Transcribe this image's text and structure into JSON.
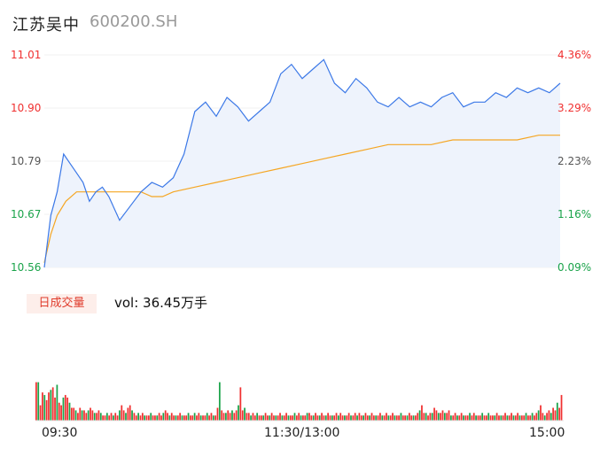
{
  "stock": {
    "name": "江苏吴中",
    "code": "600200.SH"
  },
  "colors": {
    "up": "#f03030",
    "down": "#1aa34a",
    "neutral": "#555555",
    "price_line": "#3b78e7",
    "avg_line": "#f5a623",
    "area": "#eef3fc"
  },
  "price_axis": [
    {
      "price": "11.01",
      "pct": "4.36%",
      "tone": "up"
    },
    {
      "price": "10.90",
      "pct": "3.29%",
      "tone": "up"
    },
    {
      "price": "10.79",
      "pct": "2.23%",
      "tone": "neutral"
    },
    {
      "price": "10.67",
      "pct": "1.16%",
      "tone": "down"
    },
    {
      "price": "10.56",
      "pct": "0.09%",
      "tone": "down"
    }
  ],
  "volume_panel": {
    "badge": "日成交量",
    "label": "vol: 36.45万手"
  },
  "time_axis": [
    "09:30",
    "11:30/13:00",
    "15:00"
  ],
  "chart_data": {
    "type": "line",
    "ylim": [
      10.56,
      11.01
    ],
    "x_range": [
      0,
      240
    ],
    "series": [
      {
        "x": [
          0,
          3,
          6,
          9,
          12,
          15,
          18,
          21,
          24,
          27,
          30,
          35,
          40,
          45,
          50,
          55,
          60,
          65,
          70,
          75,
          80,
          85,
          90,
          95,
          100,
          105,
          110,
          115,
          120,
          125,
          130,
          135,
          140,
          145,
          150,
          155,
          160,
          165,
          170,
          175,
          180,
          185,
          190,
          195,
          200,
          205,
          210,
          215,
          220,
          225,
          230,
          235,
          240
        ],
        "values": [
          10.56,
          10.67,
          10.72,
          10.8,
          10.78,
          10.76,
          10.74,
          10.7,
          10.72,
          10.73,
          10.71,
          10.66,
          10.69,
          10.72,
          10.74,
          10.73,
          10.75,
          10.8,
          10.89,
          10.91,
          10.88,
          10.92,
          10.9,
          10.87,
          10.89,
          10.91,
          10.97,
          10.99,
          10.96,
          10.98,
          11.0,
          10.95,
          10.93,
          10.96,
          10.94,
          10.91,
          10.9,
          10.92,
          10.9,
          10.91,
          10.9,
          10.92,
          10.93,
          10.9,
          10.91,
          10.91,
          10.93,
          10.92,
          10.94,
          10.93,
          10.94,
          10.93,
          10.95
        ]
      },
      {
        "x": [
          0,
          3,
          6,
          10,
          15,
          20,
          25,
          30,
          35,
          40,
          45,
          50,
          55,
          60,
          70,
          80,
          90,
          100,
          110,
          120,
          130,
          140,
          150,
          160,
          170,
          180,
          190,
          200,
          210,
          220,
          230,
          240
        ],
        "values": [
          10.57,
          10.63,
          10.67,
          10.7,
          10.72,
          10.72,
          10.72,
          10.72,
          10.72,
          10.72,
          10.72,
          10.71,
          10.71,
          10.72,
          10.73,
          10.74,
          10.75,
          10.76,
          10.77,
          10.78,
          10.79,
          10.8,
          10.81,
          10.82,
          10.82,
          10.82,
          10.83,
          10.83,
          10.83,
          10.83,
          10.84,
          10.84
        ]
      }
    ],
    "volume": [
      1.5,
      1.5,
      0.6,
      1.1,
      1.0,
      0.8,
      1.1,
      1.2,
      1.3,
      0.9,
      1.4,
      0.7,
      0.6,
      0.9,
      1.0,
      0.9,
      0.7,
      0.5,
      0.5,
      0.4,
      0.3,
      0.5,
      0.4,
      0.4,
      0.3,
      0.4,
      0.5,
      0.4,
      0.3,
      0.3,
      0.4,
      0.3,
      0.2,
      0.2,
      0.3,
      0.2,
      0.3,
      0.2,
      0.3,
      0.2,
      0.4,
      0.6,
      0.4,
      0.3,
      0.5,
      0.6,
      0.4,
      0.3,
      0.2,
      0.3,
      0.2,
      0.3,
      0.2,
      0.2,
      0.2,
      0.3,
      0.2,
      0.2,
      0.2,
      0.3,
      0.2,
      0.3,
      0.4,
      0.3,
      0.2,
      0.3,
      0.2,
      0.2,
      0.2,
      0.3,
      0.2,
      0.2,
      0.2,
      0.3,
      0.2,
      0.2,
      0.3,
      0.2,
      0.3,
      0.2,
      0.2,
      0.2,
      0.3,
      0.2,
      0.3,
      0.2,
      0.2,
      0.5,
      1.5,
      0.4,
      0.3,
      0.3,
      0.4,
      0.3,
      0.4,
      0.3,
      0.4,
      0.6,
      1.3,
      0.4,
      0.5,
      0.3,
      0.3,
      0.2,
      0.3,
      0.2,
      0.3,
      0.2,
      0.2,
      0.2,
      0.3,
      0.2,
      0.2,
      0.3,
      0.2,
      0.2,
      0.2,
      0.3,
      0.2,
      0.2,
      0.3,
      0.2,
      0.2,
      0.2,
      0.3,
      0.2,
      0.3,
      0.2,
      0.2,
      0.2,
      0.3,
      0.3,
      0.2,
      0.2,
      0.3,
      0.2,
      0.2,
      0.3,
      0.2,
      0.2,
      0.3,
      0.2,
      0.2,
      0.2,
      0.3,
      0.2,
      0.3,
      0.2,
      0.2,
      0.2,
      0.3,
      0.2,
      0.2,
      0.3,
      0.2,
      0.3,
      0.2,
      0.2,
      0.3,
      0.2,
      0.2,
      0.3,
      0.2,
      0.2,
      0.2,
      0.3,
      0.2,
      0.2,
      0.3,
      0.2,
      0.2,
      0.3,
      0.2,
      0.2,
      0.2,
      0.3,
      0.2,
      0.2,
      0.2,
      0.3,
      0.2,
      0.2,
      0.2,
      0.3,
      0.4,
      0.6,
      0.3,
      0.3,
      0.2,
      0.3,
      0.3,
      0.5,
      0.4,
      0.3,
      0.3,
      0.4,
      0.3,
      0.3,
      0.4,
      0.2,
      0.2,
      0.3,
      0.2,
      0.2,
      0.3,
      0.2,
      0.2,
      0.2,
      0.3,
      0.2,
      0.3,
      0.2,
      0.2,
      0.2,
      0.3,
      0.2,
      0.2,
      0.3,
      0.2,
      0.2,
      0.2,
      0.3,
      0.2,
      0.2,
      0.2,
      0.3,
      0.2,
      0.2,
      0.3,
      0.2,
      0.2,
      0.3,
      0.2,
      0.2,
      0.2,
      0.3,
      0.2,
      0.2,
      0.3,
      0.2,
      0.3,
      0.4,
      0.6,
      0.3,
      0.2,
      0.3,
      0.4,
      0.3,
      0.5,
      0.4,
      0.7,
      0.5,
      1.0
    ],
    "volume_ylim": [
      0,
      3.7
    ]
  }
}
